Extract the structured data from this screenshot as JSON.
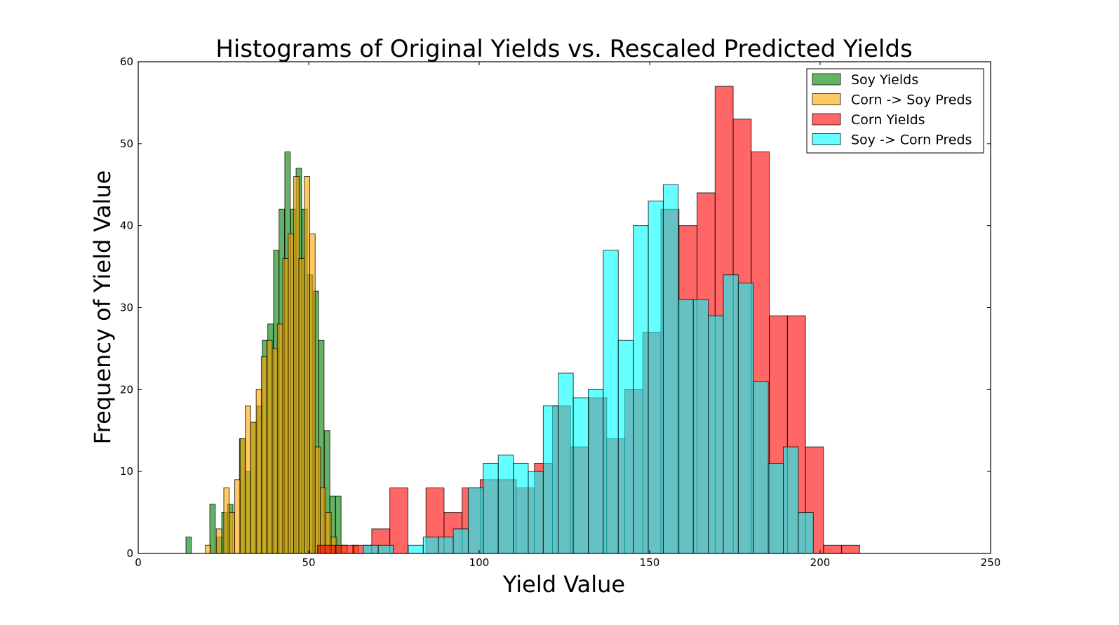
{
  "chart_data": {
    "type": "bar",
    "title": "Histograms of Original Yields vs. Rescaled Predicted Yields",
    "xlabel": "Yield Value",
    "ylabel": "Frequency of Yield Value",
    "xlim": [
      0,
      250
    ],
    "ylim": [
      0,
      60
    ],
    "xticks": [
      0,
      50,
      100,
      150,
      200,
      250
    ],
    "yticks": [
      0,
      10,
      20,
      30,
      40,
      50,
      60
    ],
    "legend_position": "top-right",
    "series": [
      {
        "name": "Soy Yields",
        "color": "#008000",
        "bin_width": 1.6,
        "bins": [
          [
            14,
            2
          ],
          [
            21,
            6
          ],
          [
            23,
            2
          ],
          [
            24.5,
            5
          ],
          [
            26.2,
            6
          ],
          [
            29.7,
            14
          ],
          [
            31.4,
            10
          ],
          [
            33,
            16
          ],
          [
            34.8,
            18
          ],
          [
            36.4,
            26
          ],
          [
            38,
            28
          ],
          [
            39.7,
            37
          ],
          [
            41.3,
            42
          ],
          [
            43,
            49
          ],
          [
            44.7,
            42
          ],
          [
            46.3,
            47
          ],
          [
            48,
            42
          ],
          [
            49.6,
            34
          ],
          [
            51.3,
            32
          ],
          [
            52.9,
            26
          ],
          [
            54.6,
            15
          ],
          [
            56.2,
            7
          ],
          [
            57.9,
            7
          ]
        ]
      },
      {
        "name": "Corn -> Soy Preds",
        "color": "#FFA500",
        "bin_width": 1.6,
        "bins": [
          [
            19.7,
            1
          ],
          [
            22.9,
            3
          ],
          [
            25.1,
            8
          ],
          [
            26.7,
            5
          ],
          [
            28.3,
            9
          ],
          [
            29.9,
            14
          ],
          [
            31.4,
            18
          ],
          [
            33,
            16
          ],
          [
            34.6,
            20
          ],
          [
            36.1,
            24
          ],
          [
            37.7,
            26
          ],
          [
            39.3,
            25
          ],
          [
            40.8,
            28
          ],
          [
            42.4,
            36
          ],
          [
            44,
            39
          ],
          [
            45.6,
            46
          ],
          [
            47.1,
            36
          ],
          [
            48.7,
            46
          ],
          [
            50.3,
            39
          ],
          [
            51.9,
            13
          ],
          [
            53.4,
            8
          ],
          [
            55,
            5
          ],
          [
            56.6,
            2
          ],
          [
            59.7,
            1
          ],
          [
            62.9,
            1
          ]
        ]
      },
      {
        "name": "Corn Yields",
        "color": "#FF0000",
        "bin_width": 5.3,
        "bins": [
          [
            52.6,
            1
          ],
          [
            57.9,
            1
          ],
          [
            63.2,
            1
          ],
          [
            68.5,
            3
          ],
          [
            73.8,
            8
          ],
          [
            79.1,
            0
          ],
          [
            84.4,
            8
          ],
          [
            89.7,
            5
          ],
          [
            95,
            8
          ],
          [
            100.3,
            9
          ],
          [
            105.6,
            9
          ],
          [
            110.9,
            8
          ],
          [
            116.2,
            11
          ],
          [
            121.5,
            18
          ],
          [
            126.8,
            13
          ],
          [
            132.1,
            19
          ],
          [
            137.4,
            14
          ],
          [
            142.7,
            20
          ],
          [
            148,
            27
          ],
          [
            153.3,
            42
          ],
          [
            158.6,
            40
          ],
          [
            163.9,
            44
          ],
          [
            169.2,
            57
          ],
          [
            174.5,
            53
          ],
          [
            179.8,
            49
          ],
          [
            185.1,
            29
          ],
          [
            190.4,
            29
          ],
          [
            195.7,
            13
          ],
          [
            201,
            1
          ],
          [
            206.3,
            1
          ]
        ]
      },
      {
        "name": "Soy -> Corn Preds",
        "color": "#00FFFF",
        "bin_width": 4.4,
        "bins": [
          [
            66,
            1
          ],
          [
            70.4,
            1
          ],
          [
            74.8,
            0
          ],
          [
            79.2,
            1
          ],
          [
            83.6,
            2
          ],
          [
            88,
            2
          ],
          [
            92.4,
            3
          ],
          [
            96.8,
            8
          ],
          [
            101.2,
            11
          ],
          [
            105.6,
            12
          ],
          [
            110,
            11
          ],
          [
            114.4,
            10
          ],
          [
            118.8,
            18
          ],
          [
            123.2,
            22
          ],
          [
            127.6,
            19
          ],
          [
            132,
            20
          ],
          [
            136.4,
            37
          ],
          [
            140.8,
            26
          ],
          [
            145.2,
            40
          ],
          [
            149.6,
            43
          ],
          [
            154,
            45
          ],
          [
            158.4,
            31
          ],
          [
            162.8,
            31
          ],
          [
            167.2,
            29
          ],
          [
            171.6,
            34
          ],
          [
            176,
            33
          ],
          [
            180.4,
            21
          ],
          [
            184.8,
            11
          ],
          [
            189.2,
            13
          ],
          [
            193.6,
            5
          ]
        ]
      }
    ]
  }
}
